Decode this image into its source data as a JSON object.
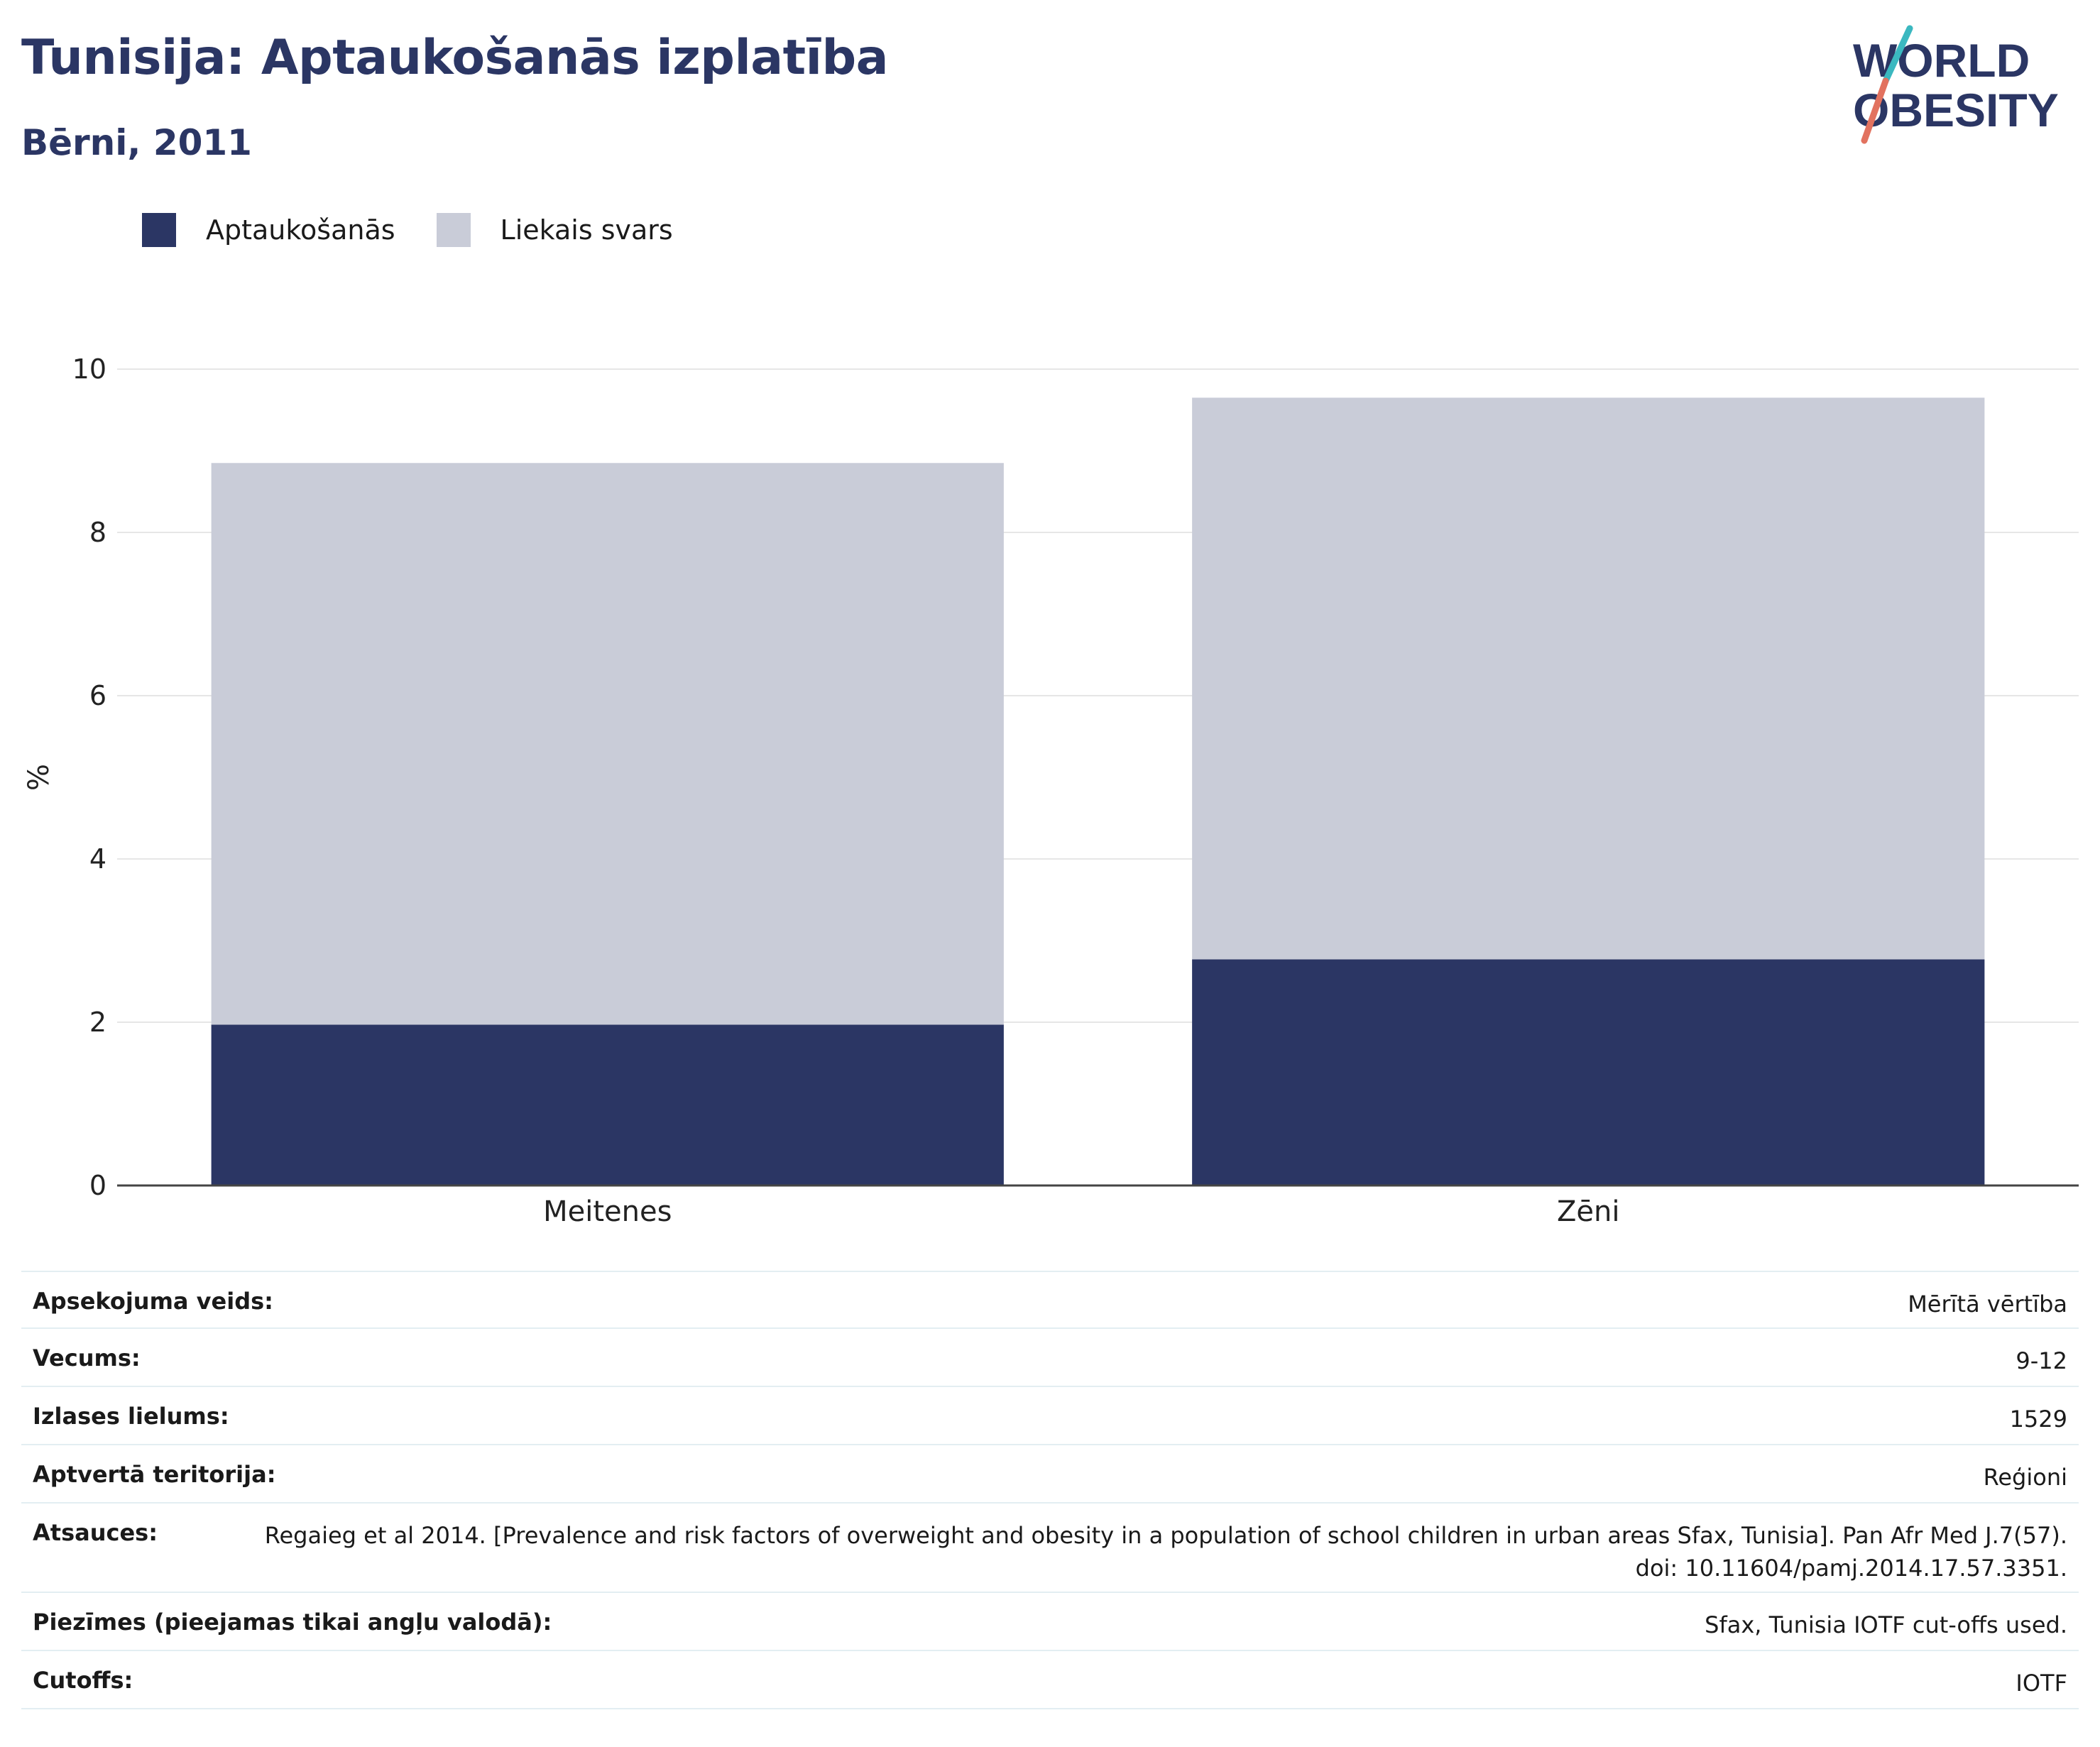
{
  "header": {
    "title": "Tunisija: Aptaukošanās izplatība",
    "subtitle": "Bērni, 2011"
  },
  "logo": {
    "line1": "WORLD",
    "line2": "OBESITY"
  },
  "colors": {
    "title": "#2b3664",
    "obesity": "#2b3664",
    "overweight": "#c9ccd8",
    "logo_teal": "#3bb8c0",
    "logo_coral": "#e2725f",
    "grid": "#e6e6e6"
  },
  "chart_data": {
    "type": "bar",
    "stacked": true,
    "categories": [
      "Meitenes",
      "Zēni"
    ],
    "series": [
      {
        "name": "Aptaukošanās",
        "values": [
          1.97,
          2.77
        ],
        "color": "#2b3664"
      },
      {
        "name": "Liekais svars",
        "values": [
          6.88,
          6.88
        ],
        "color": "#c9ccd8"
      }
    ],
    "ylabel": "%",
    "ylim": [
      0,
      10
    ],
    "yticks": [
      0,
      2,
      4,
      6,
      8,
      10
    ],
    "grid": true,
    "legend_position": "top-left"
  },
  "meta": [
    {
      "label": "Apsekojuma veids:",
      "value": "Mērītā vērtība"
    },
    {
      "label": "Vecums:",
      "value": "9-12"
    },
    {
      "label": "Izlases lielums:",
      "value": "1529"
    },
    {
      "label": "Aptvertā teritorija:",
      "value": "Reģioni"
    },
    {
      "label": "Atsauces:",
      "value": "Regaieg et al 2014. [Prevalence and risk factors of overweight and obesity in a population of school children in urban areas Sfax, Tunisia]. Pan Afr Med J.7(57). doi: 10.11604/pamj.2014.17.57.3351."
    },
    {
      "label": "Piezīmes (pieejamas tikai angļu valodā):",
      "value": "Sfax, Tunisia IOTF cut-offs used."
    },
    {
      "label": "Cutoffs:",
      "value": "IOTF"
    }
  ]
}
